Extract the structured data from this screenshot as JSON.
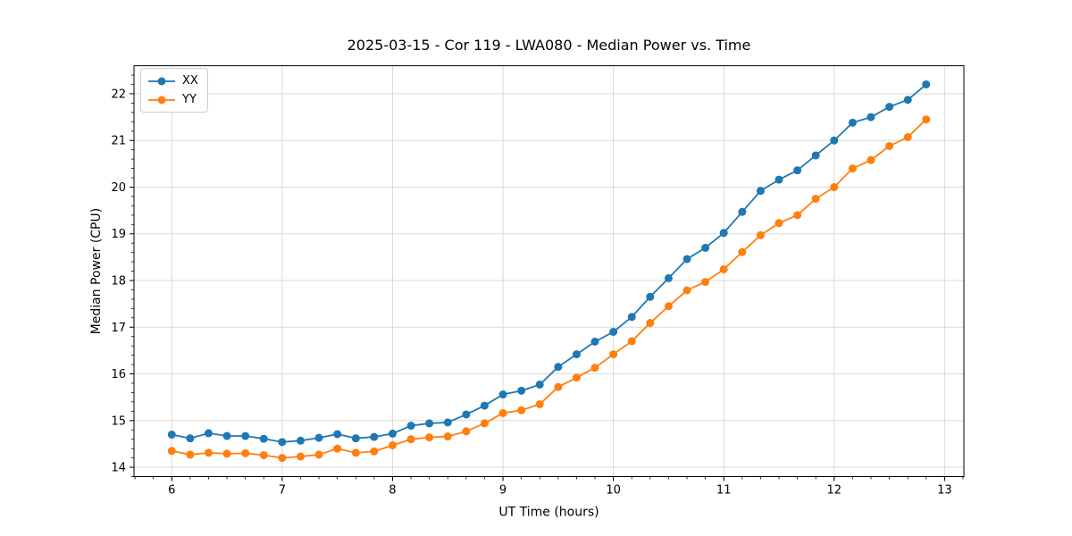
{
  "chart_data": {
    "type": "line",
    "title": "2025-03-15 - Cor 119 - LWA080 - Median Power vs. Time",
    "xlabel": "UT Time (hours)",
    "ylabel": "Median Power (CPU)",
    "xlim": [
      5.658,
      13.175
    ],
    "ylim": [
      13.8,
      22.6
    ],
    "xticks": [
      6,
      7,
      8,
      9,
      10,
      11,
      12,
      13
    ],
    "yticks": [
      14,
      15,
      16,
      17,
      18,
      19,
      20,
      21,
      22
    ],
    "x_minor_step": 0.1666667,
    "y_minor_step": 0.2,
    "grid": "major-both",
    "grid_color": "#d9d9d9",
    "axis_color": "#000000",
    "legend_location": "upper left",
    "x": [
      6.0,
      6.167,
      6.333,
      6.5,
      6.667,
      6.833,
      7.0,
      7.167,
      7.333,
      7.5,
      7.667,
      7.833,
      8.0,
      8.167,
      8.333,
      8.5,
      8.667,
      8.833,
      9.0,
      9.167,
      9.333,
      9.5,
      9.667,
      9.833,
      10.0,
      10.167,
      10.333,
      10.5,
      10.667,
      10.833,
      11.0,
      11.167,
      11.333,
      11.5,
      11.667,
      11.833,
      12.0,
      12.167,
      12.333,
      12.5,
      12.667,
      12.833
    ],
    "series": [
      {
        "name": "XX",
        "color": "#1f77b4",
        "values": [
          14.7,
          14.62,
          14.73,
          14.67,
          14.67,
          14.61,
          14.54,
          14.57,
          14.63,
          14.71,
          14.62,
          14.65,
          14.72,
          14.89,
          14.94,
          14.96,
          15.13,
          15.32,
          15.56,
          15.64,
          15.77,
          16.15,
          16.42,
          16.69,
          16.9,
          17.22,
          17.65,
          18.05,
          18.46,
          18.7,
          19.02,
          19.47,
          19.92,
          20.16,
          20.36,
          20.68,
          21.0,
          21.38,
          21.5,
          21.72,
          21.87,
          22.2
        ]
      },
      {
        "name": "YY",
        "color": "#ff7f0e",
        "values": [
          14.35,
          14.27,
          14.31,
          14.29,
          14.3,
          14.26,
          14.2,
          14.23,
          14.27,
          14.4,
          14.31,
          14.34,
          14.47,
          14.6,
          14.64,
          14.66,
          14.77,
          14.94,
          15.16,
          15.22,
          15.35,
          15.72,
          15.92,
          16.13,
          16.42,
          16.7,
          17.09,
          17.45,
          17.79,
          17.97,
          18.24,
          18.61,
          18.97,
          19.23,
          19.4,
          19.75,
          20.0,
          20.4,
          20.58,
          20.88,
          21.07,
          21.45
        ]
      }
    ]
  }
}
